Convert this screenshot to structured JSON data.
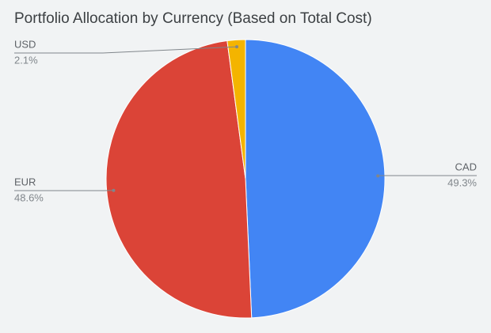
{
  "chart_data": {
    "type": "pie",
    "title": "Portfolio Allocation by Currency (Based on Total Cost)",
    "categories": [
      "CAD",
      "EUR",
      "USD"
    ],
    "values": [
      49.3,
      48.6,
      2.1
    ],
    "value_labels": [
      "49.3%",
      "48.6%",
      "2.1%"
    ],
    "colors": [
      "#4285f4",
      "#db4437",
      "#f4b400"
    ]
  }
}
